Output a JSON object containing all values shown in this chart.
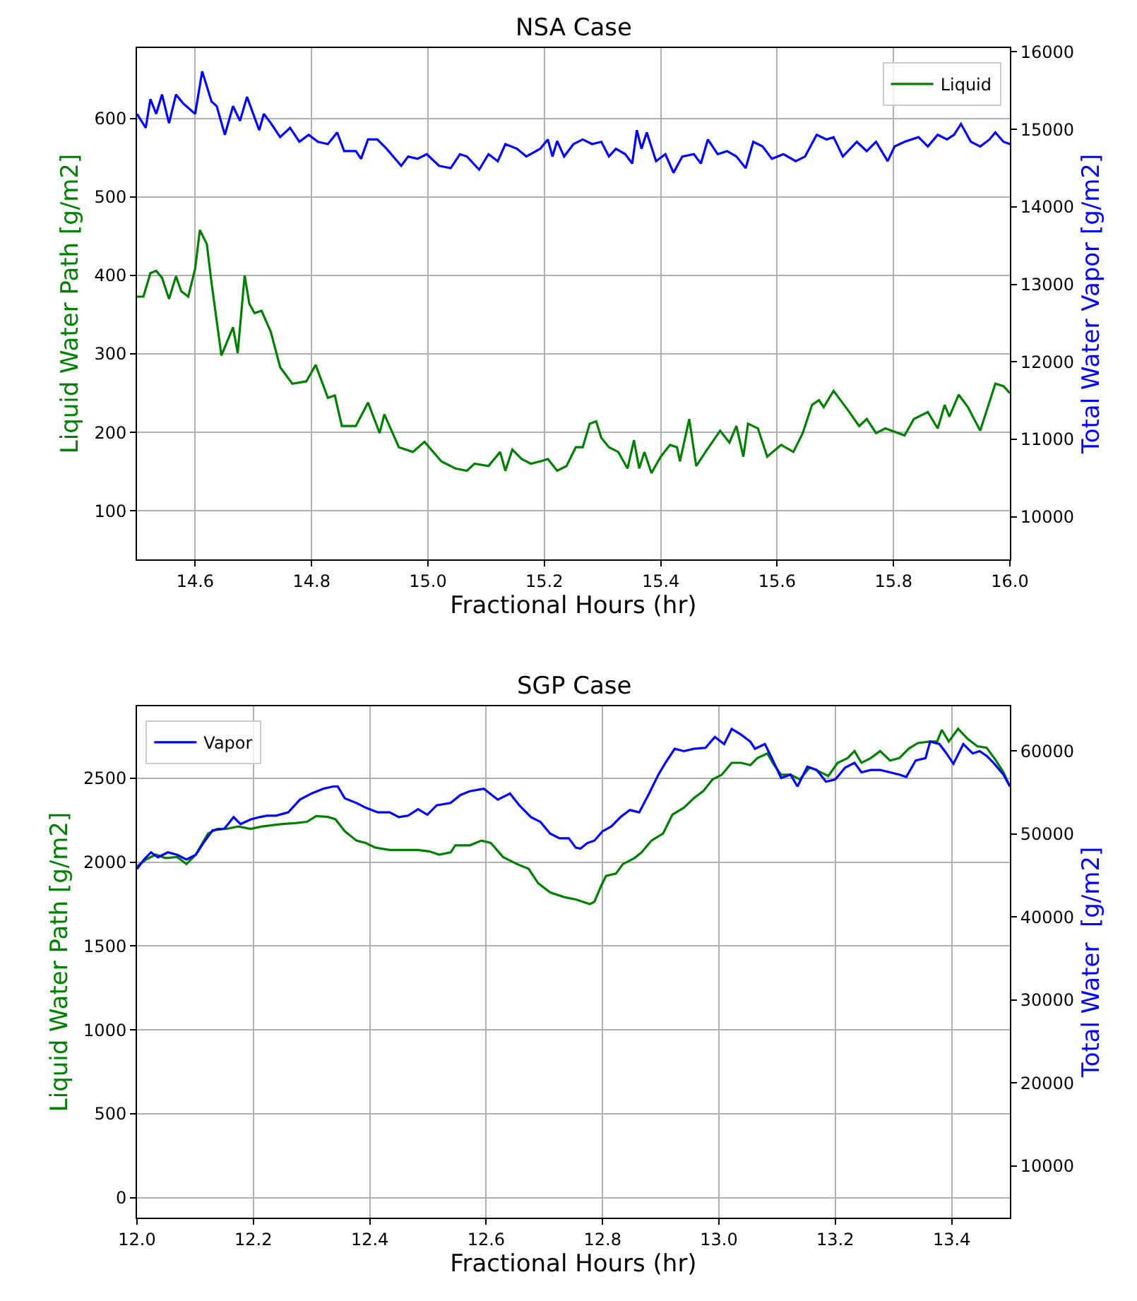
{
  "chart_data": [
    {
      "type": "line",
      "title": "NSA Case",
      "xlabel": "Fractional Hours (hr)",
      "ylabel": "Liquid Water Path [g/m2]",
      "y2label": "Total Water Vapor [g/m2]",
      "xlim": [
        14.5,
        16.0
      ],
      "xticks": [
        14.6,
        14.8,
        {
          "value": 15.0,
          "label": "15.0"
        },
        15.2,
        15.4,
        15.6,
        15.8,
        {
          "value": 16.0,
          "label": "16.0"
        }
      ],
      "ylim": [
        38,
        690
      ],
      "yticks": [
        100,
        200,
        300,
        400,
        500,
        600
      ],
      "y2lim": [
        9450,
        16050
      ],
      "y2ticks": [
        10000,
        11000,
        12000,
        13000,
        14000,
        15000,
        16000
      ],
      "grid": true,
      "legend": "top right",
      "series": [
        {
          "name": "Liquid",
          "color": "#008000",
          "axis": "y",
          "x": [
            14.5,
            14.511,
            14.523,
            14.533,
            14.543,
            14.555,
            14.567,
            14.576,
            14.588,
            14.6,
            14.608,
            14.62,
            14.628,
            14.645,
            14.665,
            14.673,
            14.685,
            14.693,
            14.702,
            14.714,
            14.73,
            14.746,
            14.767,
            14.791,
            14.807,
            14.828,
            14.84,
            14.852,
            14.876,
            14.897,
            14.917,
            14.925,
            14.95,
            14.974,
            14.994,
            15.023,
            15.047,
            15.067,
            15.08,
            15.104,
            15.124,
            15.133,
            15.145,
            15.161,
            15.177,
            15.193,
            15.206,
            15.222,
            15.238,
            15.254,
            15.266,
            15.278,
            15.289,
            15.298,
            15.311,
            15.327,
            15.343,
            15.354,
            15.363,
            15.372,
            15.384,
            15.4,
            15.416,
            15.428,
            15.433,
            15.449,
            15.461,
            15.477,
            15.502,
            15.518,
            15.53,
            15.542,
            15.55,
            15.567,
            15.583,
            15.607,
            15.628,
            15.644,
            15.66,
            15.672,
            15.68,
            15.697,
            15.721,
            15.741,
            15.754,
            15.77,
            15.786,
            15.819,
            15.835,
            15.859,
            15.876,
            15.888,
            15.896,
            15.912,
            15.928,
            15.949,
            15.975,
            15.989,
            16.0
          ],
          "values": [
            373,
            373,
            403,
            406,
            397,
            370,
            399,
            380,
            373,
            409,
            458,
            440,
            391,
            298,
            334,
            301,
            400,
            364,
            352,
            355,
            328,
            283,
            262,
            265,
            286,
            244,
            247,
            208,
            208,
            238,
            199,
            223,
            181,
            175,
            188,
            163,
            154,
            151,
            160,
            157,
            175,
            151,
            178,
            166,
            160,
            163,
            166,
            151,
            157,
            181,
            181,
            211,
            214,
            193,
            181,
            175,
            154,
            190,
            154,
            175,
            148,
            169,
            184,
            181,
            163,
            217,
            157,
            175,
            202,
            187,
            208,
            169,
            211,
            205,
            169,
            184,
            175,
            199,
            235,
            241,
            232,
            253,
            229,
            208,
            217,
            199,
            205,
            196,
            217,
            226,
            205,
            235,
            220,
            248,
            232,
            202,
            262,
            259,
            250
          ]
        },
        {
          "color": "#0000ff",
          "axis": "y2",
          "x": [
            14.5,
            14.515,
            14.523,
            14.533,
            14.543,
            14.555,
            14.567,
            14.58,
            14.6,
            14.612,
            14.628,
            14.637,
            14.651,
            14.665,
            14.677,
            14.689,
            14.71,
            14.718,
            14.73,
            14.746,
            14.763,
            14.779,
            14.795,
            14.811,
            14.828,
            14.844,
            14.856,
            14.876,
            14.885,
            14.897,
            14.913,
            14.929,
            14.954,
            14.966,
            14.982,
            14.998,
            15.019,
            15.039,
            15.055,
            15.067,
            15.088,
            15.104,
            15.12,
            15.133,
            15.153,
            15.169,
            15.193,
            15.206,
            15.214,
            15.222,
            15.234,
            15.25,
            15.266,
            15.282,
            15.298,
            15.311,
            15.323,
            15.339,
            15.351,
            15.359,
            15.367,
            15.376,
            15.392,
            15.408,
            15.422,
            15.437,
            15.457,
            15.469,
            15.481,
            15.498,
            15.514,
            15.53,
            15.546,
            15.559,
            15.575,
            15.591,
            15.611,
            15.632,
            15.648,
            15.668,
            15.685,
            15.697,
            15.713,
            15.737,
            15.754,
            15.77,
            15.79,
            15.802,
            15.819,
            15.843,
            15.859,
            15.876,
            15.892,
            15.904,
            15.916,
            15.933,
            15.949,
            15.965,
            15.975,
            15.989,
            16.0
          ],
          "values": [
            15200,
            15020,
            15390,
            15200,
            15450,
            15080,
            15450,
            15330,
            15200,
            15750,
            15360,
            15300,
            14930,
            15300,
            15110,
            15420,
            14990,
            15200,
            15080,
            14900,
            15020,
            14840,
            14930,
            14840,
            14810,
            14960,
            14720,
            14720,
            14620,
            14870,
            14870,
            14750,
            14530,
            14650,
            14620,
            14680,
            14530,
            14500,
            14680,
            14650,
            14480,
            14680,
            14590,
            14810,
            14750,
            14650,
            14750,
            14870,
            14650,
            14850,
            14650,
            14810,
            14870,
            14810,
            14840,
            14650,
            14750,
            14680,
            14560,
            14990,
            14750,
            14960,
            14590,
            14680,
            14440,
            14650,
            14680,
            14560,
            14870,
            14680,
            14720,
            14650,
            14500,
            14840,
            14780,
            14620,
            14680,
            14590,
            14650,
            14930,
            14870,
            14900,
            14650,
            14840,
            14720,
            14840,
            14590,
            14780,
            14840,
            14900,
            14780,
            14930,
            14870,
            14930,
            15070,
            14840,
            14780,
            14870,
            14960,
            14840,
            14810
          ]
        }
      ]
    },
    {
      "type": "line",
      "title": "SGP Case",
      "xlabel": "Fractional Hours (hr)",
      "ylabel": "Liquid Water Path [g/m2]",
      "y2label": "Total Water  [g/m2]",
      "xlim": [
        12.0,
        13.5
      ],
      "xticks": [
        {
          "value": 12.0,
          "label": "12.0"
        },
        12.2,
        12.4,
        12.6,
        12.8,
        {
          "value": 13.0,
          "label": "13.0"
        },
        13.2,
        13.4
      ],
      "ylim": [
        -120,
        2930
      ],
      "yticks": [
        0,
        500,
        1000,
        1500,
        2000,
        2500
      ],
      "y2lim": [
        3770,
        65400
      ],
      "y2ticks": [
        10000,
        20000,
        30000,
        40000,
        50000,
        60000
      ],
      "grid": true,
      "legend": "top left",
      "series": [
        {
          "color": "#008000",
          "axis": "y",
          "x": [
            12.0,
            12.016,
            12.032,
            12.049,
            12.069,
            12.085,
            12.101,
            12.122,
            12.138,
            12.154,
            12.174,
            12.195,
            12.215,
            12.247,
            12.272,
            12.292,
            12.308,
            12.328,
            12.341,
            12.357,
            12.377,
            12.393,
            12.41,
            12.434,
            12.458,
            12.483,
            12.503,
            12.519,
            12.539,
            12.547,
            12.572,
            12.592,
            12.608,
            12.629,
            12.653,
            12.673,
            12.689,
            12.71,
            12.734,
            12.754,
            12.766,
            12.778,
            12.786,
            12.798,
            12.806,
            12.823,
            12.835,
            12.855,
            12.867,
            12.884,
            12.904,
            12.92,
            12.94,
            12.957,
            12.973,
            12.989,
            13.005,
            13.022,
            13.038,
            13.054,
            13.066,
            13.083,
            13.095,
            13.107,
            13.123,
            13.139,
            13.156,
            13.172,
            13.188,
            13.204,
            13.221,
            13.233,
            13.245,
            13.261,
            13.277,
            13.294,
            13.31,
            13.326,
            13.342,
            13.363,
            13.375,
            13.383,
            13.395,
            13.411,
            13.428,
            13.444,
            13.46,
            13.476,
            13.489,
            13.5
          ],
          "values": [
            1975,
            2017,
            2045,
            2025,
            2031,
            1989,
            2045,
            2171,
            2199,
            2199,
            2213,
            2199,
            2213,
            2227,
            2233,
            2241,
            2275,
            2270,
            2256,
            2185,
            2129,
            2115,
            2087,
            2073,
            2073,
            2073,
            2064,
            2045,
            2059,
            2101,
            2101,
            2129,
            2115,
            2031,
            1989,
            1961,
            1876,
            1820,
            1792,
            1778,
            1764,
            1750,
            1764,
            1862,
            1918,
            1932,
            1989,
            2025,
            2059,
            2129,
            2171,
            2284,
            2326,
            2382,
            2424,
            2494,
            2522,
            2593,
            2593,
            2579,
            2621,
            2649,
            2579,
            2522,
            2522,
            2494,
            2565,
            2542,
            2514,
            2593,
            2621,
            2663,
            2593,
            2621,
            2663,
            2607,
            2621,
            2677,
            2711,
            2720,
            2720,
            2790,
            2720,
            2796,
            2734,
            2692,
            2683,
            2607,
            2536,
            2452
          ]
        },
        {
          "name": "Vapor",
          "color": "#0000ff",
          "axis": "y2",
          "x": [
            12.0,
            12.012,
            12.024,
            12.036,
            12.053,
            12.069,
            12.085,
            12.101,
            12.114,
            12.13,
            12.15,
            12.166,
            12.178,
            12.195,
            12.211,
            12.223,
            12.239,
            12.26,
            12.28,
            12.3,
            12.32,
            12.337,
            12.345,
            12.357,
            12.377,
            12.393,
            12.414,
            12.434,
            12.45,
            12.466,
            12.483,
            12.499,
            12.515,
            12.539,
            12.556,
            12.572,
            12.596,
            12.62,
            12.641,
            12.657,
            12.677,
            12.693,
            12.71,
            12.726,
            12.742,
            12.754,
            12.762,
            12.774,
            12.786,
            12.8,
            12.815,
            12.831,
            12.847,
            12.863,
            12.88,
            12.896,
            12.908,
            12.924,
            12.94,
            12.957,
            12.977,
            12.993,
            13.009,
            13.022,
            13.038,
            13.054,
            13.062,
            13.079,
            13.091,
            13.107,
            13.123,
            13.135,
            13.152,
            13.168,
            13.184,
            13.2,
            13.217,
            13.233,
            13.245,
            13.261,
            13.277,
            13.294,
            13.31,
            13.322,
            13.338,
            13.355,
            13.363,
            13.379,
            13.391,
            13.403,
            13.42,
            13.436,
            13.448,
            13.46,
            13.472,
            13.489,
            13.5
          ],
          "values": [
            45800,
            46930,
            47800,
            47200,
            47800,
            47500,
            46930,
            47500,
            48920,
            50460,
            50630,
            52050,
            51200,
            51760,
            52050,
            52220,
            52220,
            52620,
            54150,
            54890,
            55460,
            55740,
            55740,
            54320,
            53750,
            53180,
            52620,
            52620,
            52050,
            52220,
            53010,
            52330,
            53470,
            53750,
            54720,
            55170,
            55460,
            54150,
            54890,
            53470,
            52050,
            51480,
            50060,
            49490,
            49490,
            48360,
            48240,
            48920,
            49210,
            50340,
            50910,
            52050,
            52900,
            52620,
            54890,
            57160,
            58580,
            60280,
            60000,
            60280,
            60400,
            61700,
            60850,
            62670,
            61990,
            61140,
            60280,
            60850,
            59150,
            56760,
            57160,
            55740,
            58130,
            57730,
            56310,
            56590,
            58010,
            58580,
            57440,
            57730,
            57730,
            57440,
            57160,
            56880,
            58860,
            59150,
            61140,
            60850,
            59720,
            58470,
            60850,
            59720,
            60000,
            59430,
            58580,
            57160,
            55740
          ]
        }
      ]
    }
  ]
}
